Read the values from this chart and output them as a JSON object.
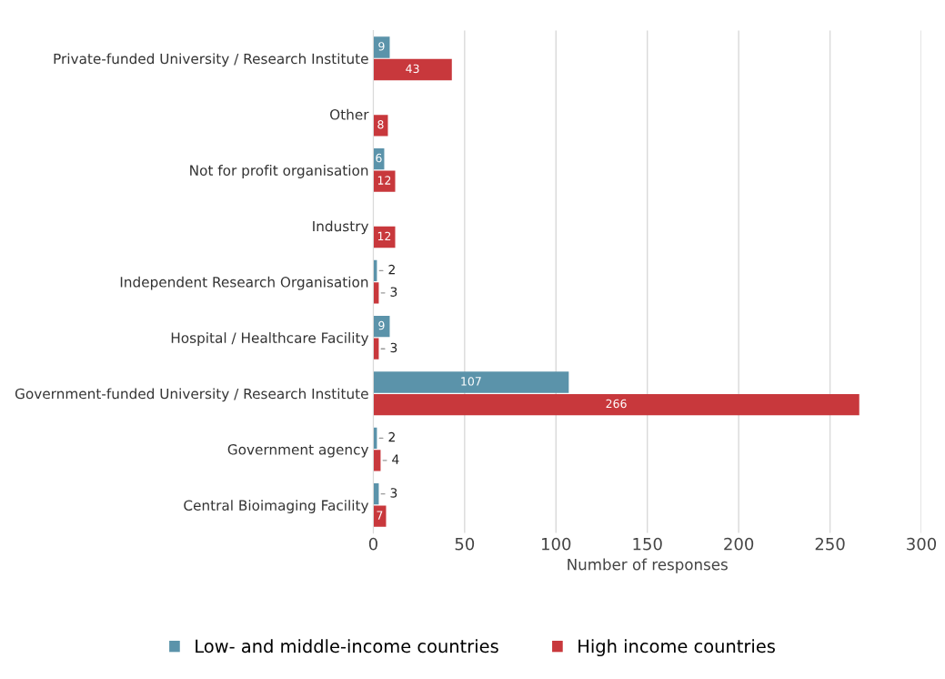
{
  "chart_data": {
    "type": "bar",
    "orientation": "horizontal",
    "xlabel": "Number of responses",
    "categories": [
      "Private-funded University / Research Institute",
      "Other",
      "Not for profit organisation",
      "Industry",
      "Independent Research Organisation",
      "Hospital / Healthcare Facility",
      "Government-funded University / Research Institute",
      "Government agency",
      "Central Bioimaging Facility"
    ],
    "series": [
      {
        "name": "Low- and middle-income countries",
        "color": "#5b93aa",
        "values": [
          9,
          null,
          6,
          null,
          2,
          9,
          107,
          2,
          3
        ]
      },
      {
        "name": "High income countries",
        "color": "#c8383c",
        "values": [
          43,
          8,
          12,
          12,
          3,
          3,
          266,
          4,
          7
        ]
      }
    ],
    "xlim": [
      0,
      300
    ],
    "xticks": [
      0,
      50,
      100,
      150,
      200,
      250,
      300
    ],
    "grid": "x",
    "legend": "bottom",
    "data_labels": true
  }
}
